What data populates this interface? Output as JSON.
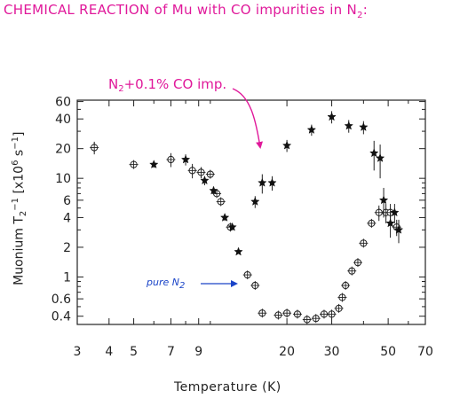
{
  "page": {
    "title_main": "CHEMICAL REACTION of Mu with CO impurities in N",
    "title_sub": "2",
    "title_tail": ":",
    "annotation_co_main": "N",
    "annotation_co_sub": "2",
    "annotation_co_tail": "+0.1% CO imp.",
    "annotation_pure_main": "pure N",
    "annotation_pure_sub": "2",
    "colors": {
      "title": "#e0189a",
      "annotation_pure": "#1a44c8",
      "axis": "#222222"
    }
  },
  "chart_data": {
    "type": "scatter",
    "title": "CHEMICAL REACTION of Mu with CO impurities in N2",
    "xlabel": "Temperature (K)",
    "ylabel": "Muonium T2^-1 [x10^6 s^-1]",
    "ylabel_main": "Muonium T",
    "ylabel_sub": "2",
    "ylabel_sup": "−1",
    "ylabel_mid": " [x10",
    "ylabel_sup2": "6",
    "ylabel_mid2": " s",
    "ylabel_sup3": "−1",
    "ylabel_end": "]",
    "xscale": "log",
    "yscale": "log",
    "xlim": [
      3,
      70
    ],
    "ylim": [
      0.33,
      62
    ],
    "x_ticks": [
      {
        "value": 3,
        "label": "3"
      },
      {
        "value": 4,
        "label": "4"
      },
      {
        "value": 5,
        "label": "5"
      },
      {
        "value": 7,
        "label": "7"
      },
      {
        "value": 9,
        "label": "9"
      },
      {
        "value": 20,
        "label": "20"
      },
      {
        "value": 30,
        "label": "30"
      },
      {
        "value": 50,
        "label": "50"
      },
      {
        "value": 70,
        "label": "70"
      }
    ],
    "y_ticks": [
      {
        "value": 0.4,
        "label": "0.4"
      },
      {
        "value": 0.6,
        "label": "0.6"
      },
      {
        "value": 1,
        "label": "1"
      },
      {
        "value": 2,
        "label": "2"
      },
      {
        "value": 4,
        "label": "4"
      },
      {
        "value": 6,
        "label": "6"
      },
      {
        "value": 10,
        "label": "10"
      },
      {
        "value": 20,
        "label": "20"
      },
      {
        "value": 40,
        "label": "40"
      },
      {
        "value": 60,
        "label": "60"
      }
    ],
    "grid": false,
    "series": [
      {
        "name": "pure N2",
        "marker": "open-circle-cross",
        "points": [
          {
            "x": 3.5,
            "y": 20.5,
            "err": 3
          },
          {
            "x": 5.0,
            "y": 13.8,
            "err": 0.8
          },
          {
            "x": 7.0,
            "y": 15.5,
            "err": 2.5
          },
          {
            "x": 8.5,
            "y": 12.0,
            "err": 2.0
          },
          {
            "x": 9.2,
            "y": 11.5,
            "err": 1.5
          },
          {
            "x": 10.0,
            "y": 11.0,
            "err": 1.0
          },
          {
            "x": 10.6,
            "y": 7.0,
            "err": 0
          },
          {
            "x": 11.0,
            "y": 5.8,
            "err": 0
          },
          {
            "x": 12.0,
            "y": 3.2,
            "err": 0
          },
          {
            "x": 14.0,
            "y": 1.05,
            "err": 0
          },
          {
            "x": 15.0,
            "y": 0.82,
            "err": 0
          },
          {
            "x": 16.0,
            "y": 0.43,
            "err": 0
          },
          {
            "x": 18.5,
            "y": 0.41,
            "err": 0.03
          },
          {
            "x": 20.0,
            "y": 0.43,
            "err": 0.03
          },
          {
            "x": 22.0,
            "y": 0.42,
            "err": 0.03
          },
          {
            "x": 24.0,
            "y": 0.37,
            "err": 0.03
          },
          {
            "x": 26.0,
            "y": 0.38,
            "err": 0
          },
          {
            "x": 28.0,
            "y": 0.42,
            "err": 0
          },
          {
            "x": 30.0,
            "y": 0.42,
            "err": 0
          },
          {
            "x": 32.0,
            "y": 0.48,
            "err": 0
          },
          {
            "x": 33.0,
            "y": 0.62,
            "err": 0
          },
          {
            "x": 34.0,
            "y": 0.82,
            "err": 0
          },
          {
            "x": 36.0,
            "y": 1.15,
            "err": 0
          },
          {
            "x": 38.0,
            "y": 1.4,
            "err": 0
          },
          {
            "x": 40.0,
            "y": 2.2,
            "err": 0
          },
          {
            "x": 43.0,
            "y": 3.5,
            "err": 0.3
          },
          {
            "x": 46.0,
            "y": 4.5,
            "err": 0.8
          },
          {
            "x": 49.0,
            "y": 4.5,
            "err": 1.0
          },
          {
            "x": 51.0,
            "y": 4.5,
            "err": 1.0
          },
          {
            "x": 54.0,
            "y": 3.2,
            "err": 0.6
          }
        ]
      },
      {
        "name": "N2+0.1% CO imp.",
        "marker": "star",
        "points": [
          {
            "x": 6.0,
            "y": 13.8,
            "err": 1.0
          },
          {
            "x": 8.0,
            "y": 15.5,
            "err": 2.0
          },
          {
            "x": 9.5,
            "y": 9.5,
            "err": 1.0
          },
          {
            "x": 10.3,
            "y": 7.5,
            "err": 0.5
          },
          {
            "x": 11.4,
            "y": 4.0,
            "err": 0.3
          },
          {
            "x": 12.2,
            "y": 3.2,
            "err": 0.2
          },
          {
            "x": 12.9,
            "y": 1.8,
            "err": 0
          },
          {
            "x": 15.0,
            "y": 5.8,
            "err": 0.8
          },
          {
            "x": 16.0,
            "y": 9.0,
            "err": 2.0
          },
          {
            "x": 17.5,
            "y": 9.0,
            "err": 1.5
          },
          {
            "x": 20.0,
            "y": 21.5,
            "err": 3.0
          },
          {
            "x": 25.0,
            "y": 31.0,
            "err": 4.0
          },
          {
            "x": 30.0,
            "y": 42.0,
            "err": 6.0
          },
          {
            "x": 35.0,
            "y": 34.0,
            "err": 5.0
          },
          {
            "x": 40.0,
            "y": 33.0,
            "err": 5.0
          },
          {
            "x": 44.0,
            "y": 18.0,
            "err": 6.0
          },
          {
            "x": 46.5,
            "y": 16.0,
            "err": 6.0
          },
          {
            "x": 48.0,
            "y": 6.0,
            "err": 2.0
          },
          {
            "x": 51.0,
            "y": 3.5,
            "err": 1.0
          },
          {
            "x": 53.0,
            "y": 4.5,
            "err": 1.0
          },
          {
            "x": 55.0,
            "y": 3.0,
            "err": 0.8
          }
        ]
      }
    ]
  }
}
